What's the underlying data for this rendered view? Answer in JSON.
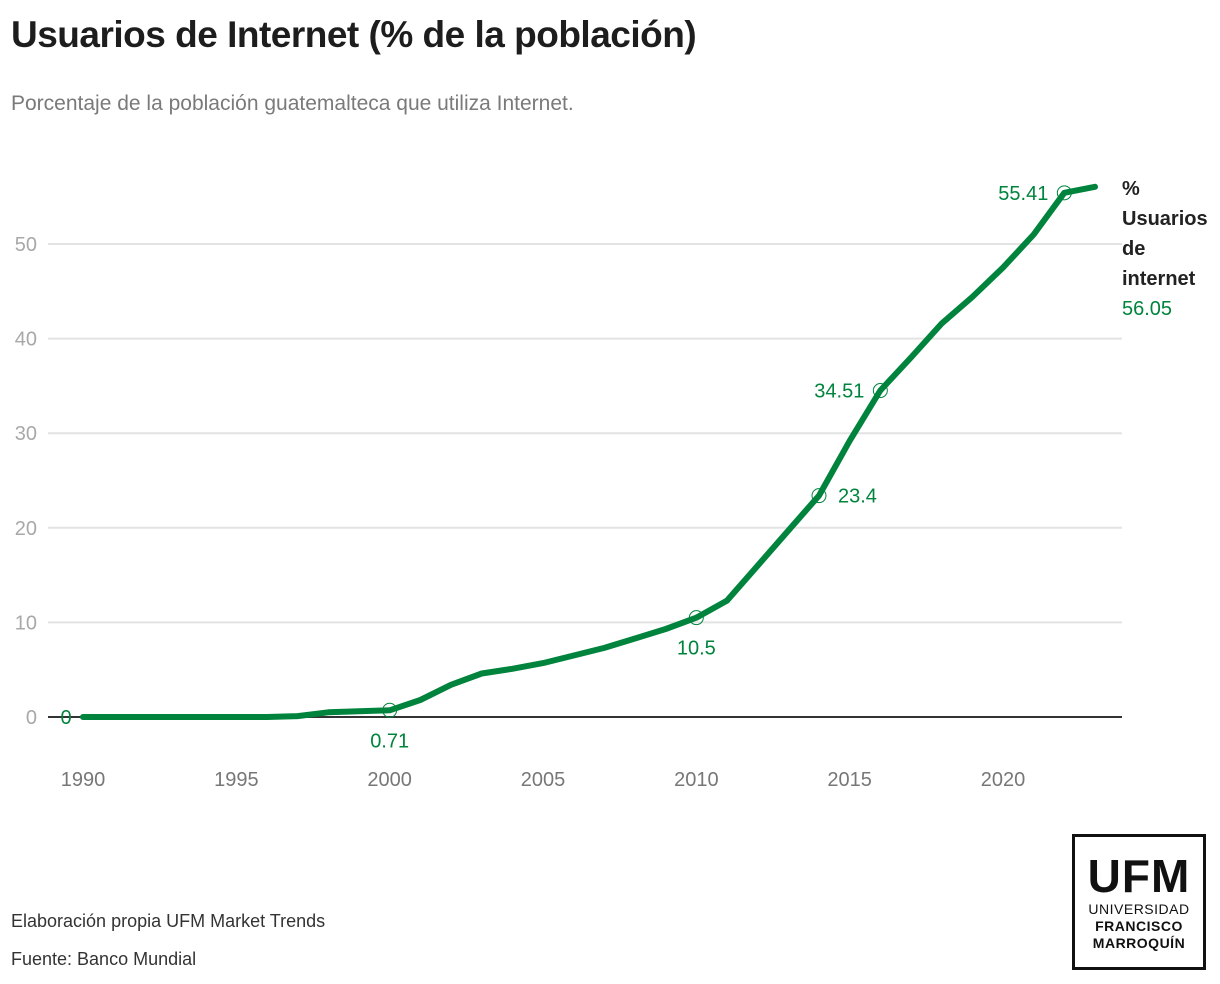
{
  "header": {
    "title": "Usuarios de Internet (% de la población)",
    "subtitle": "Porcentaje de la población guatemalteca que utiliza Internet."
  },
  "footer": {
    "credit": "Elaboración propia UFM Market Trends",
    "source": "Fuente: Banco Mundial"
  },
  "logo": {
    "acronym": "UFM",
    "line1": "UNIVERSIDAD",
    "line2": "FRANCISCO",
    "line3": "MARROQUÍN"
  },
  "colors": {
    "series": "#00843d",
    "grid": "#e3e3e3",
    "baseline": "#333333"
  },
  "chart_data": {
    "type": "line",
    "title": "Usuarios de Internet (% de la población)",
    "subtitle": "Porcentaje de la población guatemalteca que utiliza Internet.",
    "xlabel": "",
    "ylabel": "",
    "x": [
      1990,
      1991,
      1992,
      1993,
      1994,
      1995,
      1996,
      1997,
      1998,
      1999,
      2000,
      2001,
      2002,
      2003,
      2004,
      2005,
      2006,
      2007,
      2008,
      2009,
      2010,
      2011,
      2012,
      2013,
      2014,
      2015,
      2016,
      2017,
      2018,
      2019,
      2020,
      2021,
      2022,
      2023
    ],
    "series": [
      {
        "name": "% Usuarios de internet",
        "name_lines": [
          "%",
          "Usuarios",
          "de",
          "internet"
        ],
        "end_value_label": "56.05",
        "values": [
          0,
          0,
          0,
          0,
          0,
          0,
          0,
          0.1,
          0.5,
          0.6,
          0.71,
          1.8,
          3.4,
          4.6,
          5.1,
          5.7,
          6.5,
          7.3,
          8.3,
          9.3,
          10.5,
          12.3,
          16.0,
          19.7,
          23.4,
          29.2,
          34.51,
          38.0,
          41.6,
          44.4,
          47.5,
          51.0,
          55.41,
          56.05
        ]
      }
    ],
    "annotations": [
      {
        "x": 1990,
        "y": 0,
        "label": "0",
        "position": "left"
      },
      {
        "x": 2000,
        "y": 0.71,
        "label": "0.71",
        "position": "below"
      },
      {
        "x": 2010,
        "y": 10.5,
        "label": "10.5",
        "position": "below"
      },
      {
        "x": 2014,
        "y": 23.4,
        "label": "23.4",
        "position": "right"
      },
      {
        "x": 2016,
        "y": 34.51,
        "label": "34.51",
        "position": "left"
      },
      {
        "x": 2022,
        "y": 55.41,
        "label": "55.41",
        "position": "left"
      }
    ],
    "xticks": [
      1990,
      1995,
      2000,
      2005,
      2010,
      2015,
      2020
    ],
    "yticks": [
      0,
      10,
      20,
      30,
      40,
      50
    ],
    "xlim": [
      1990,
      2023
    ],
    "ylim": [
      0,
      56.05
    ],
    "grid": true,
    "legend": "direct-label-right"
  }
}
